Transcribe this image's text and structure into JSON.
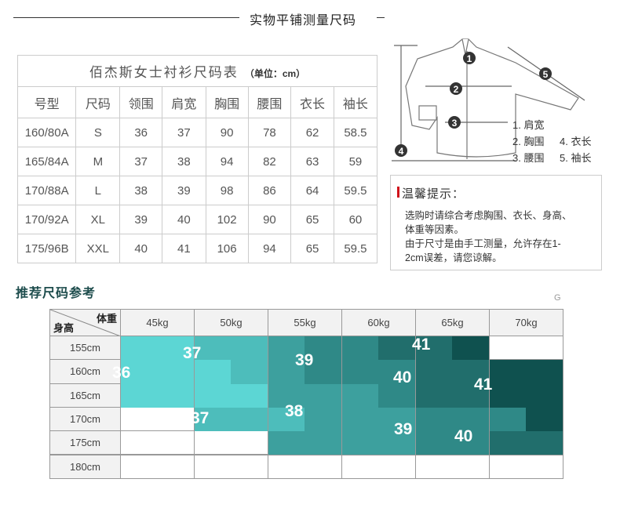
{
  "header": {
    "title": "实物平铺测量尺码"
  },
  "size_table": {
    "title": "佰杰斯女士衬衫尺码表",
    "unit": "（单位：cm）",
    "columns": [
      "号型",
      "尺码",
      "领围",
      "肩宽",
      "胸围",
      "腰围",
      "衣长",
      "袖长"
    ],
    "rows": [
      [
        "160/80A",
        "S",
        "36",
        "37",
        "90",
        "78",
        "62",
        "58.5"
      ],
      [
        "165/84A",
        "M",
        "37",
        "38",
        "94",
        "82",
        "63",
        "59"
      ],
      [
        "170/88A",
        "L",
        "38",
        "39",
        "98",
        "86",
        "64",
        "59.5"
      ],
      [
        "170/92A",
        "XL",
        "39",
        "40",
        "102",
        "90",
        "65",
        "60"
      ],
      [
        "175/96B",
        "XXL",
        "40",
        "41",
        "106",
        "94",
        "65",
        "59.5"
      ]
    ]
  },
  "diagram": {
    "markers": [
      "1",
      "2",
      "3",
      "4",
      "5"
    ],
    "legend": [
      "1. 肩宽",
      "2. 胸围",
      "3. 腰围",
      "4. 衣长",
      "5. 袖长"
    ]
  },
  "tips": {
    "title": "温馨提示：",
    "lines": [
      "选购时请综合考虑胸围、衣长、身高、",
      "体重等因素。",
      "由于尺寸是由手工测量，允许存在1-",
      "2cm误差，请您谅解。"
    ],
    "accent": "#d0121b"
  },
  "recommend": {
    "title": "推荐尺码参考",
    "mark": "G",
    "corner_weight": "体重",
    "corner_height": "身高",
    "weights": [
      "45kg",
      "50kg",
      "55kg",
      "60kg",
      "65kg",
      "70kg"
    ],
    "heights": [
      "155cm",
      "160cm",
      "165cm",
      "170cm",
      "175cm",
      "180cm"
    ],
    "colors": {
      "36": "#5cd6d4",
      "37": "#4dbdbb",
      "38": "#3da09e",
      "39": "#2f8987",
      "40": "#216e6c",
      "41": "#0f514f"
    }
  },
  "chart_data": {
    "type": "heatmap",
    "title": "推荐尺码参考",
    "xlabel": "体重",
    "ylabel": "身高",
    "x": [
      "45kg",
      "50kg",
      "55kg",
      "60kg",
      "65kg",
      "70kg"
    ],
    "y": [
      "155cm",
      "160cm",
      "165cm",
      "170cm",
      "175cm",
      "180cm"
    ],
    "cells_left_right_half": [
      [
        [
          36,
          36
        ],
        [
          37,
          37
        ],
        [
          38,
          39
        ],
        [
          39,
          40
        ],
        [
          40,
          41
        ],
        [
          null,
          null
        ]
      ],
      [
        [
          36,
          36
        ],
        [
          36,
          37
        ],
        [
          38,
          39
        ],
        [
          39,
          39
        ],
        [
          40,
          40
        ],
        [
          41,
          41
        ]
      ],
      [
        [
          36,
          36
        ],
        [
          36,
          36
        ],
        [
          38,
          38
        ],
        [
          38,
          39
        ],
        [
          40,
          40
        ],
        [
          41,
          41
        ]
      ],
      [
        [
          null,
          null
        ],
        [
          37,
          37
        ],
        [
          37,
          38
        ],
        [
          38,
          38
        ],
        [
          39,
          39
        ],
        [
          39,
          41
        ]
      ],
      [
        [
          null,
          null
        ],
        [
          null,
          null
        ],
        [
          38,
          38
        ],
        [
          38,
          38
        ],
        [
          39,
          39
        ],
        [
          40,
          40
        ]
      ],
      [
        [
          null,
          null
        ],
        [
          null,
          null
        ],
        [
          null,
          null
        ],
        [
          null,
          null
        ],
        [
          null,
          null
        ],
        [
          null,
          null
        ]
      ]
    ],
    "labels": [
      "36",
      "37",
      "39",
      "41",
      "40",
      "41",
      "37",
      "38",
      "39",
      "40"
    ]
  }
}
